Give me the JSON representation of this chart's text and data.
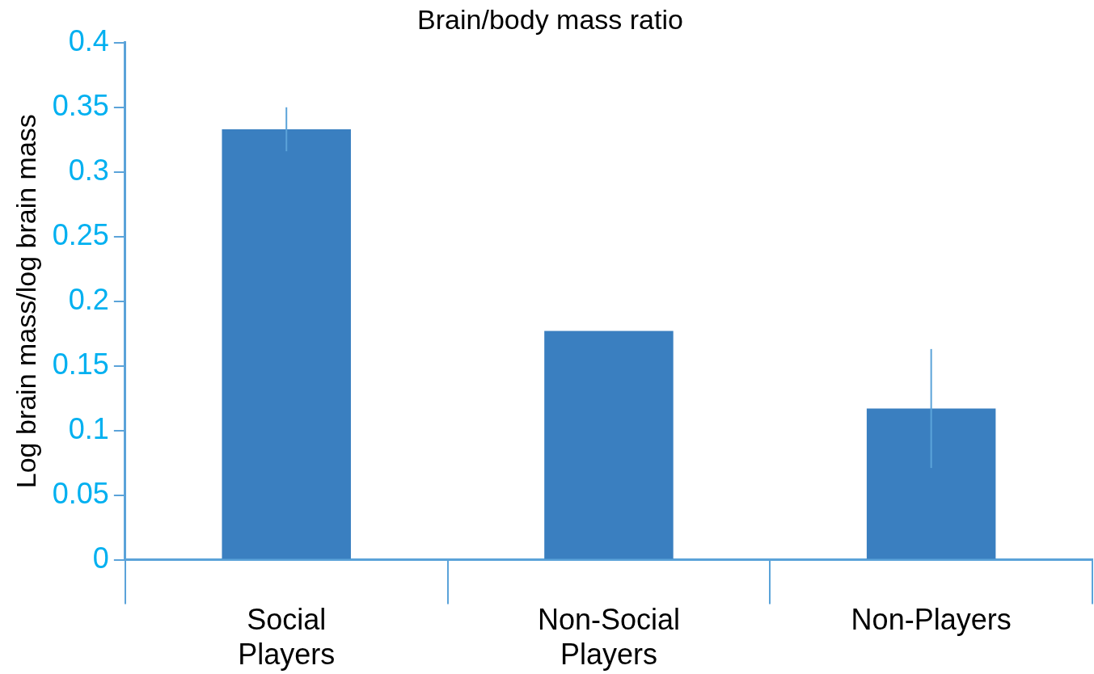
{
  "chart_data": {
    "type": "bar",
    "title": "Brain/body mass ratio",
    "ylabel": "Log brain mass/log brain mass",
    "categories": [
      "Social Players",
      "Non-Social Players",
      "Non-Players"
    ],
    "values": [
      0.333,
      0.177,
      0.117
    ],
    "errors": [
      0.017,
      null,
      0.046
    ],
    "color": "#3a7fc0",
    "ylim": [
      0,
      0.4
    ],
    "yticks": [
      0,
      0.05,
      0.1,
      0.15,
      0.2,
      0.25,
      0.3,
      0.35,
      0.4
    ],
    "grid": false,
    "legend": false
  }
}
